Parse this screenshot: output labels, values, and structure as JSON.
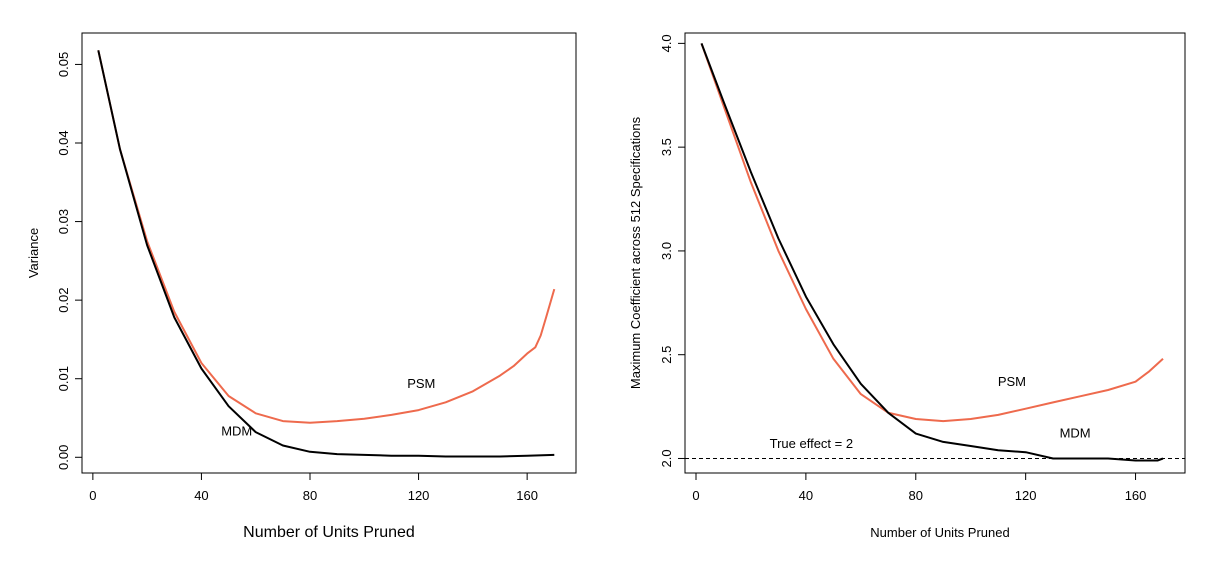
{
  "chart_data": [
    {
      "type": "line",
      "title": "",
      "xlabel": "Number of Units Pruned",
      "ylabel": "Variance",
      "xlim": [
        -4,
        178
      ],
      "ylim": [
        -0.002,
        0.054
      ],
      "xticks": [
        0,
        40,
        80,
        120,
        160
      ],
      "xtick_labels": [
        "0",
        "40",
        "80",
        "120",
        "160"
      ],
      "yticks": [
        0.0,
        0.01,
        0.02,
        0.03,
        0.04,
        0.05
      ],
      "ytick_labels": [
        "0.00",
        "0.01",
        "0.02",
        "0.03",
        "0.04",
        "0.05"
      ],
      "grid": false,
      "annotations": [
        {
          "text": "PSM",
          "x": 121,
          "y": 0.0088
        },
        {
          "text": "MDM",
          "x": 53,
          "y": 0.0028
        }
      ],
      "series": [
        {
          "name": "PSM",
          "color": "#ee6a4d",
          "x": [
            2,
            10,
            20,
            30,
            40,
            50,
            60,
            70,
            80,
            90,
            100,
            110,
            120,
            130,
            140,
            150,
            155,
            160,
            163,
            165,
            167,
            170
          ],
          "y": [
            0.0518,
            0.0392,
            0.0275,
            0.0185,
            0.012,
            0.0078,
            0.0056,
            0.0046,
            0.0044,
            0.0046,
            0.0049,
            0.0054,
            0.006,
            0.007,
            0.0084,
            0.0104,
            0.0116,
            0.0132,
            0.014,
            0.0155,
            0.0178,
            0.0214
          ]
        },
        {
          "name": "MDM",
          "color": "#000000",
          "x": [
            2,
            10,
            20,
            30,
            40,
            50,
            60,
            70,
            80,
            90,
            100,
            110,
            120,
            130,
            140,
            150,
            160,
            170
          ],
          "y": [
            0.0518,
            0.0392,
            0.027,
            0.0178,
            0.0113,
            0.0065,
            0.0032,
            0.0015,
            0.0007,
            0.0004,
            0.0003,
            0.0002,
            0.0002,
            0.0001,
            0.0001,
            0.0001,
            0.0002,
            0.0003
          ]
        }
      ]
    },
    {
      "type": "line",
      "title": "",
      "xlabel": "Number of Units Pruned",
      "ylabel": "Maximum Coefficient across 512 Specifications",
      "xlim": [
        -4,
        178
      ],
      "ylim": [
        1.93,
        4.05
      ],
      "xticks": [
        0,
        40,
        80,
        120,
        160
      ],
      "xtick_labels": [
        "0",
        "40",
        "80",
        "120",
        "160"
      ],
      "yticks": [
        2.0,
        2.5,
        3.0,
        3.5,
        4.0
      ],
      "ytick_labels": [
        "2.0",
        "2.5",
        "3.0",
        "3.5",
        "4.0"
      ],
      "grid": false,
      "reference_line": {
        "y": 2.0,
        "label": "True effect = 2"
      },
      "annotations": [
        {
          "text": "PSM",
          "x": 115,
          "y": 2.35
        },
        {
          "text": "MDM",
          "x": 138,
          "y": 2.1
        },
        {
          "text": "True effect = 2",
          "x": 42,
          "y": 2.05
        }
      ],
      "series": [
        {
          "name": "PSM",
          "color": "#ee6a4d",
          "x": [
            2,
            10,
            20,
            30,
            40,
            50,
            60,
            70,
            80,
            90,
            100,
            110,
            120,
            130,
            140,
            150,
            160,
            165,
            170
          ],
          "y": [
            4.0,
            3.7,
            3.33,
            3.0,
            2.72,
            2.48,
            2.31,
            2.22,
            2.19,
            2.18,
            2.19,
            2.21,
            2.24,
            2.27,
            2.3,
            2.33,
            2.37,
            2.42,
            2.48
          ]
        },
        {
          "name": "MDM",
          "color": "#000000",
          "x": [
            2,
            10,
            20,
            30,
            40,
            50,
            60,
            70,
            80,
            90,
            100,
            110,
            120,
            130,
            140,
            150,
            160,
            168,
            170
          ],
          "y": [
            4.0,
            3.72,
            3.38,
            3.06,
            2.78,
            2.55,
            2.36,
            2.22,
            2.12,
            2.08,
            2.06,
            2.04,
            2.03,
            2.0,
            2.0,
            2.0,
            1.99,
            1.99,
            2.0
          ]
        }
      ]
    }
  ]
}
